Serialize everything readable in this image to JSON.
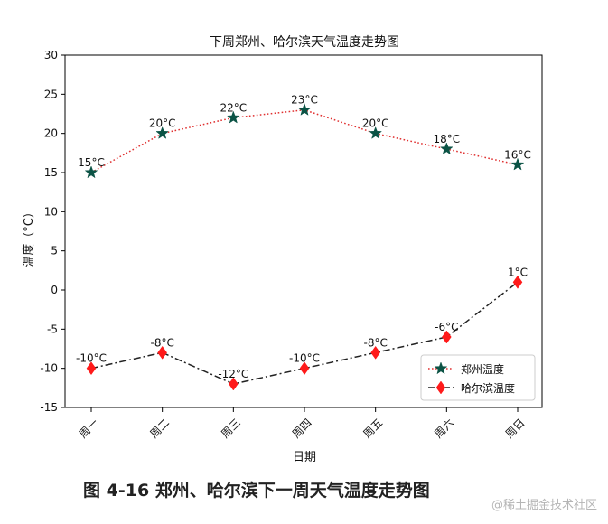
{
  "chart_data": {
    "type": "line",
    "title": "下周郑州、哈尔滨天气温度走势图",
    "xlabel": "日期",
    "ylabel": "温度（°C）",
    "categories": [
      "周一",
      "周二",
      "周三",
      "周四",
      "周五",
      "周六",
      "周日"
    ],
    "ylim": [
      -15,
      30
    ],
    "yticks": [
      -15,
      -10,
      -5,
      0,
      5,
      10,
      15,
      20,
      25,
      30
    ],
    "grid": false,
    "legend_position": "lower-right",
    "series": [
      {
        "name": "郑州温度",
        "values": [
          15,
          20,
          22,
          23,
          20,
          18,
          16
        ],
        "labels": [
          "15°C",
          "20°C",
          "22°C",
          "23°C",
          "20°C",
          "18°C",
          "16°C"
        ],
        "line_style": "dotted",
        "line_color": "#e03030",
        "marker": "star",
        "marker_color": "#0b5345"
      },
      {
        "name": "哈尔滨温度",
        "values": [
          -10,
          -8,
          -12,
          -10,
          -8,
          -6,
          1
        ],
        "labels": [
          "-10°C",
          "-8°C",
          "-12°C",
          "-10°C",
          "-8°C",
          "-6°C",
          "1°C"
        ],
        "line_style": "dashdot",
        "line_color": "#222222",
        "marker": "diamond",
        "marker_color": "#ff1a1a"
      }
    ]
  },
  "caption": "图 4-16  郑州、哈尔滨下一周天气温度走势图",
  "watermark": "@稀土掘金技术社区"
}
